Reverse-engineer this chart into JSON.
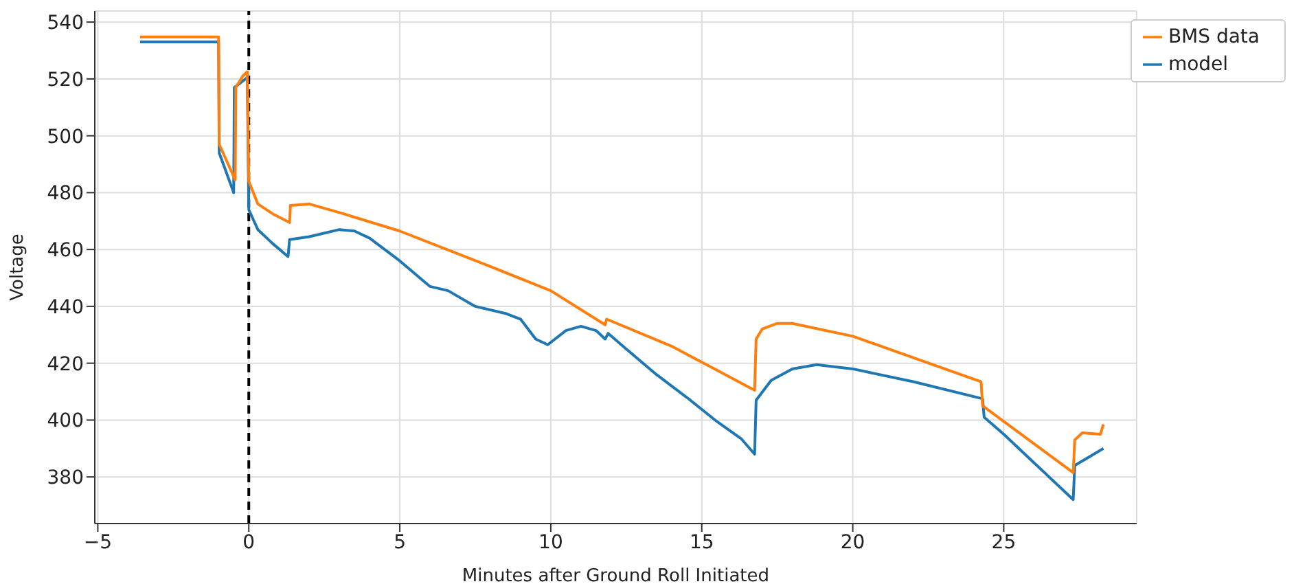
{
  "chart_data": {
    "type": "line",
    "xlabel": "Minutes after Ground Roll Initiated",
    "ylabel": "Voltage",
    "xlim": [
      -5.1,
      29.4
    ],
    "xticks": [
      -5,
      0,
      5,
      10,
      15,
      20,
      25
    ],
    "ylim": [
      363.6,
      543.9
    ],
    "yticks": [
      380,
      400,
      420,
      440,
      460,
      480,
      500,
      520,
      540
    ],
    "grid": true,
    "legend": "top right",
    "line_style": "solid",
    "ref_lines": [
      {
        "axis": "x",
        "value": 0,
        "color": "#000000",
        "line_style": "dashed"
      }
    ],
    "series": [
      {
        "name": "model",
        "color": "#1f77b4",
        "x": [
          -3.6,
          -1.0,
          -0.98,
          -0.5,
          -0.48,
          -0.05,
          0,
          0.3,
          0.8,
          1.3,
          1.35,
          2,
          3,
          3.5,
          4,
          5,
          6,
          6.6,
          7.5,
          8.5,
          9,
          9.5,
          9.9,
          10.5,
          11,
          11.5,
          11.8,
          11.9,
          12.5,
          13.5,
          14.5,
          15.5,
          16.3,
          16.75,
          16.8,
          17.3,
          18,
          18.8,
          20,
          22,
          24.3,
          24.35,
          25,
          26,
          27.3,
          27.35,
          28.3
        ],
        "values": [
          533,
          533,
          494,
          480,
          517,
          520.5,
          474,
          467,
          462,
          457.5,
          463.5,
          464.5,
          467,
          466.5,
          464,
          456,
          447,
          445.5,
          440,
          437.5,
          435.5,
          428.5,
          426.5,
          431.5,
          433,
          431.5,
          428.5,
          430.5,
          425,
          416,
          408,
          399.5,
          393.5,
          388,
          407,
          414,
          418,
          419.5,
          418,
          413.5,
          407.5,
          401,
          395,
          385,
          372,
          384,
          390
        ]
      },
      {
        "name": "BMS data",
        "color": "#ff7f0e",
        "x": [
          -3.6,
          -1.0,
          -0.98,
          -0.45,
          -0.43,
          -0.2,
          -0.05,
          0,
          0.3,
          0.8,
          1.35,
          1.38,
          2,
          3,
          5,
          8,
          10,
          11.8,
          11.85,
          14,
          16.75,
          16.8,
          17,
          17.5,
          18,
          20,
          24.25,
          24.3,
          27.3,
          27.35,
          27.6,
          28.2,
          28.3
        ],
        "values": [
          534.8,
          534.8,
          497,
          484.5,
          517,
          521,
          522.5,
          484,
          476,
          472.5,
          469.5,
          475.5,
          476,
          473,
          466.5,
          454,
          445.5,
          433.5,
          435.5,
          426,
          410.5,
          428.5,
          432,
          434,
          434,
          429.5,
          413.5,
          405,
          381.5,
          393,
          395.5,
          395,
          398.5
        ]
      }
    ]
  }
}
